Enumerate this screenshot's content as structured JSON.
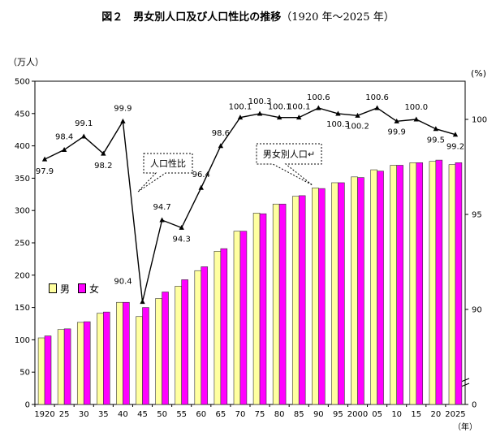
{
  "chart_data": {
    "type": "bar+line",
    "title": "図２　男女別人口及び人口性比の推移",
    "title_range": "（1920 年～2025 年）",
    "left_unit": "（万人）",
    "right_unit": "(%)",
    "x_unit": "（年）",
    "categories": [
      "1920",
      "25",
      "30",
      "35",
      "40",
      "45",
      "50",
      "55",
      "60",
      "65",
      "70",
      "75",
      "80",
      "85",
      "90",
      "95",
      "2000",
      "05",
      "10",
      "15",
      "20",
      "2025"
    ],
    "series": [
      {
        "name": "男",
        "color": "#ffffa0",
        "values": [
          103,
          116,
          127,
          141,
          158,
          136,
          164,
          183,
          207,
          237,
          268,
          296,
          310,
          322,
          335,
          343,
          352,
          363,
          370,
          374,
          376,
          371
        ]
      },
      {
        "name": "女",
        "color": "#ff00ff",
        "values": [
          106,
          117,
          128,
          143,
          158,
          150,
          174,
          193,
          213,
          241,
          268,
          295,
          310,
          323,
          334,
          343,
          351,
          361,
          370,
          374,
          378,
          374
        ]
      }
    ],
    "ratio": {
      "name": "人口性比",
      "values": [
        97.9,
        98.4,
        99.1,
        98.2,
        99.9,
        90.4,
        94.7,
        94.3,
        96.4,
        98.6,
        100.1,
        100.3,
        100.1,
        100.1,
        100.6,
        100.3,
        100.2,
        100.6,
        99.9,
        100.0,
        99.5,
        99.2
      ],
      "labels": [
        "97.9",
        "98.4",
        "99.1",
        "98.2",
        "99.9",
        "90.4",
        "94.7",
        "94.3",
        "96.4",
        "98.6",
        "100.1",
        "100.3",
        "100.1",
        "100.1",
        "100.6",
        "100.3",
        "100.2",
        "100.6",
        "99.9",
        "100.0",
        "99.5",
        "99.2"
      ]
    },
    "ylim_left": [
      0,
      500
    ],
    "yticks_left": [
      "0",
      "50",
      "100",
      "150",
      "200",
      "250",
      "300",
      "350",
      "400",
      "450",
      "500"
    ],
    "yticks_right": [
      "0",
      "90",
      "95",
      "100"
    ],
    "callouts": [
      "人口性比",
      "男女別人口↵"
    ],
    "legend": {
      "male": "男",
      "female": "女"
    }
  }
}
